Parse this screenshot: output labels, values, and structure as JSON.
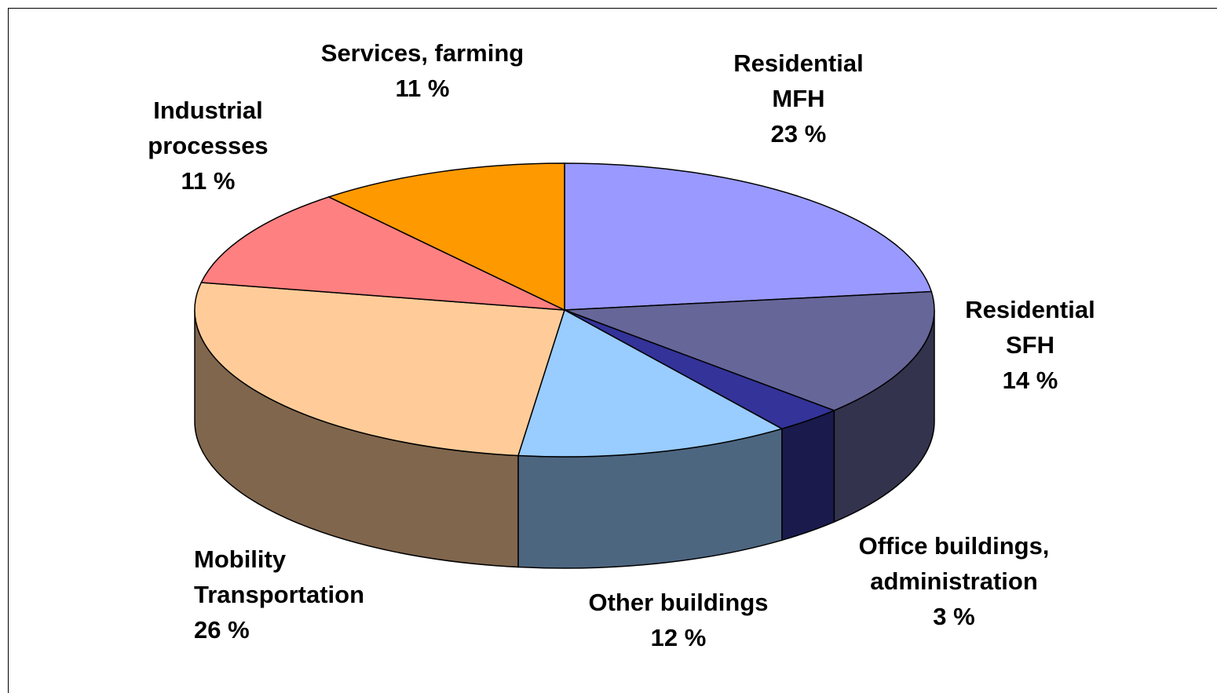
{
  "chart_data": {
    "type": "pie3d",
    "categories": [
      "Residential\nMFH",
      "Residential\nSFH",
      "Office buildings,\nadministration",
      "Other buildings",
      "Mobility\nTransportation",
      "Industrial\nprocesses",
      "Services, farming"
    ],
    "values": [
      23,
      14,
      3,
      12,
      26,
      11,
      11
    ],
    "value_labels": [
      "23 %",
      "14 %",
      "3 %",
      "12 %",
      "26 %",
      "11 %",
      "11 %"
    ],
    "colors": [
      "#9999ff",
      "#666699",
      "#333399",
      "#99ccff",
      "#ffcc99",
      "#ff8080",
      "#ff9900"
    ]
  }
}
